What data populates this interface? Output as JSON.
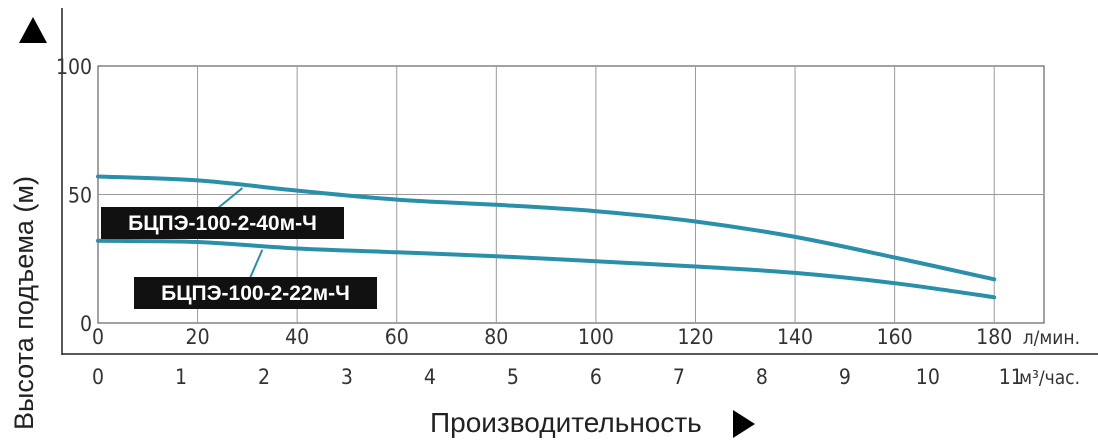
{
  "chart_data": {
    "type": "line",
    "ylabel": "Высота подъема (м)",
    "xlabel": "Производительность",
    "ylim": [
      0,
      100
    ],
    "yticks": [
      "0",
      "50",
      "100"
    ],
    "x_primary": {
      "unit": "л/мин.",
      "range": [
        0,
        180
      ],
      "ticks": [
        "0",
        "20",
        "40",
        "60",
        "80",
        "100",
        "120",
        "140",
        "160",
        "180"
      ]
    },
    "x_secondary": {
      "unit": "м³/час.",
      "range": [
        0,
        10.8
      ],
      "ticks": [
        "0",
        "1",
        "2",
        "3",
        "4",
        "5",
        "6",
        "7",
        "8",
        "9",
        "10",
        "11"
      ]
    },
    "grid": true,
    "series": [
      {
        "name": "БЦПЭ-100-2-40м-Ч",
        "color": "#2a8fa8",
        "x": [
          0,
          20,
          40,
          60,
          80,
          100,
          120,
          140,
          160,
          180
        ],
        "y": [
          57,
          55.5,
          51.5,
          48,
          46,
          43.5,
          39.5,
          33.5,
          25.5,
          17
        ]
      },
      {
        "name": "БЦПЭ-100-2-22м-Ч",
        "color": "#2a8fa8",
        "x": [
          0,
          20,
          40,
          60,
          80,
          100,
          120,
          140,
          160,
          180
        ],
        "y": [
          32,
          31.5,
          29,
          27.5,
          26,
          24,
          22,
          19.5,
          15.5,
          10
        ]
      }
    ]
  }
}
